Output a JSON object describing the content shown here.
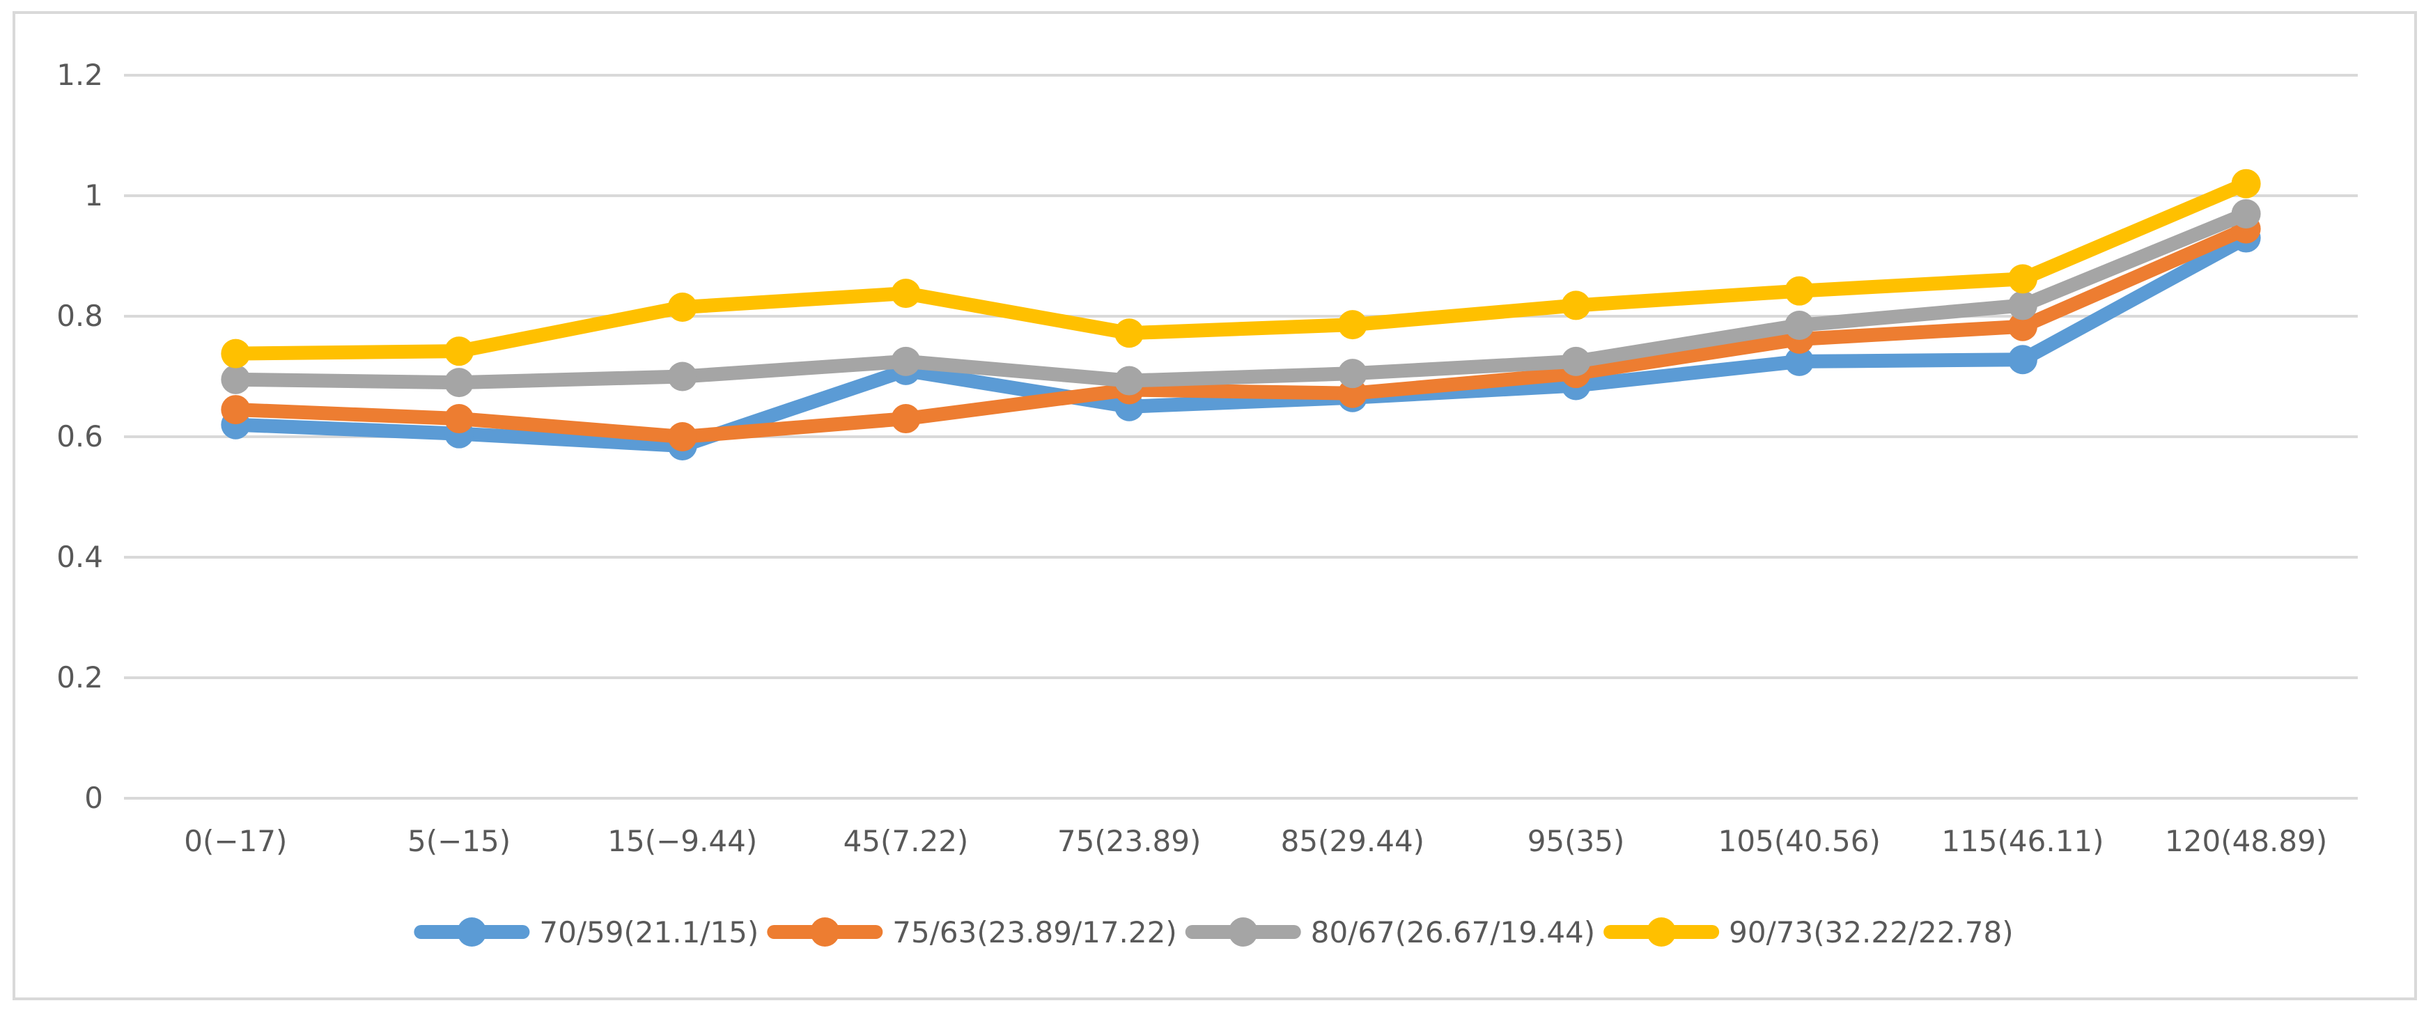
{
  "chart_data": {
    "type": "line",
    "title": "",
    "xlabel": "",
    "ylabel": "",
    "ylim": [
      0,
      1.2
    ],
    "yticks": [
      "0",
      "0.2",
      "0.4",
      "0.6",
      "0.8",
      "1",
      "1.2"
    ],
    "grid": true,
    "legend_position": "bottom",
    "categories": [
      "0(−17)",
      "5(−15)",
      "15(−9.44)",
      "45(7.22)",
      "75(23.89)",
      "85(29.44)",
      "95(35)",
      "105(40.56)",
      "115(46.11)",
      "120(48.89)"
    ],
    "series": [
      {
        "name": "70/59(21.1/15)",
        "color": "#5b9bd5",
        "values": [
          0.62,
          0.605,
          0.585,
          0.71,
          0.65,
          0.665,
          0.685,
          0.725,
          0.728,
          0.93
        ]
      },
      {
        "name": "75/63(23.89/17.22)",
        "color": "#ed7d31",
        "values": [
          0.645,
          0.63,
          0.6,
          0.63,
          0.678,
          0.672,
          0.705,
          0.762,
          0.783,
          0.945
        ]
      },
      {
        "name": "80/67(26.67/19.44)",
        "color": "#a5a5a5",
        "values": [
          0.695,
          0.69,
          0.7,
          0.725,
          0.693,
          0.705,
          0.725,
          0.785,
          0.818,
          0.97
        ]
      },
      {
        "name": "90/73(32.22/22.78)",
        "color": "#ffc000",
        "values": [
          0.738,
          0.742,
          0.815,
          0.838,
          0.772,
          0.786,
          0.818,
          0.842,
          0.862,
          1.02
        ]
      }
    ]
  }
}
